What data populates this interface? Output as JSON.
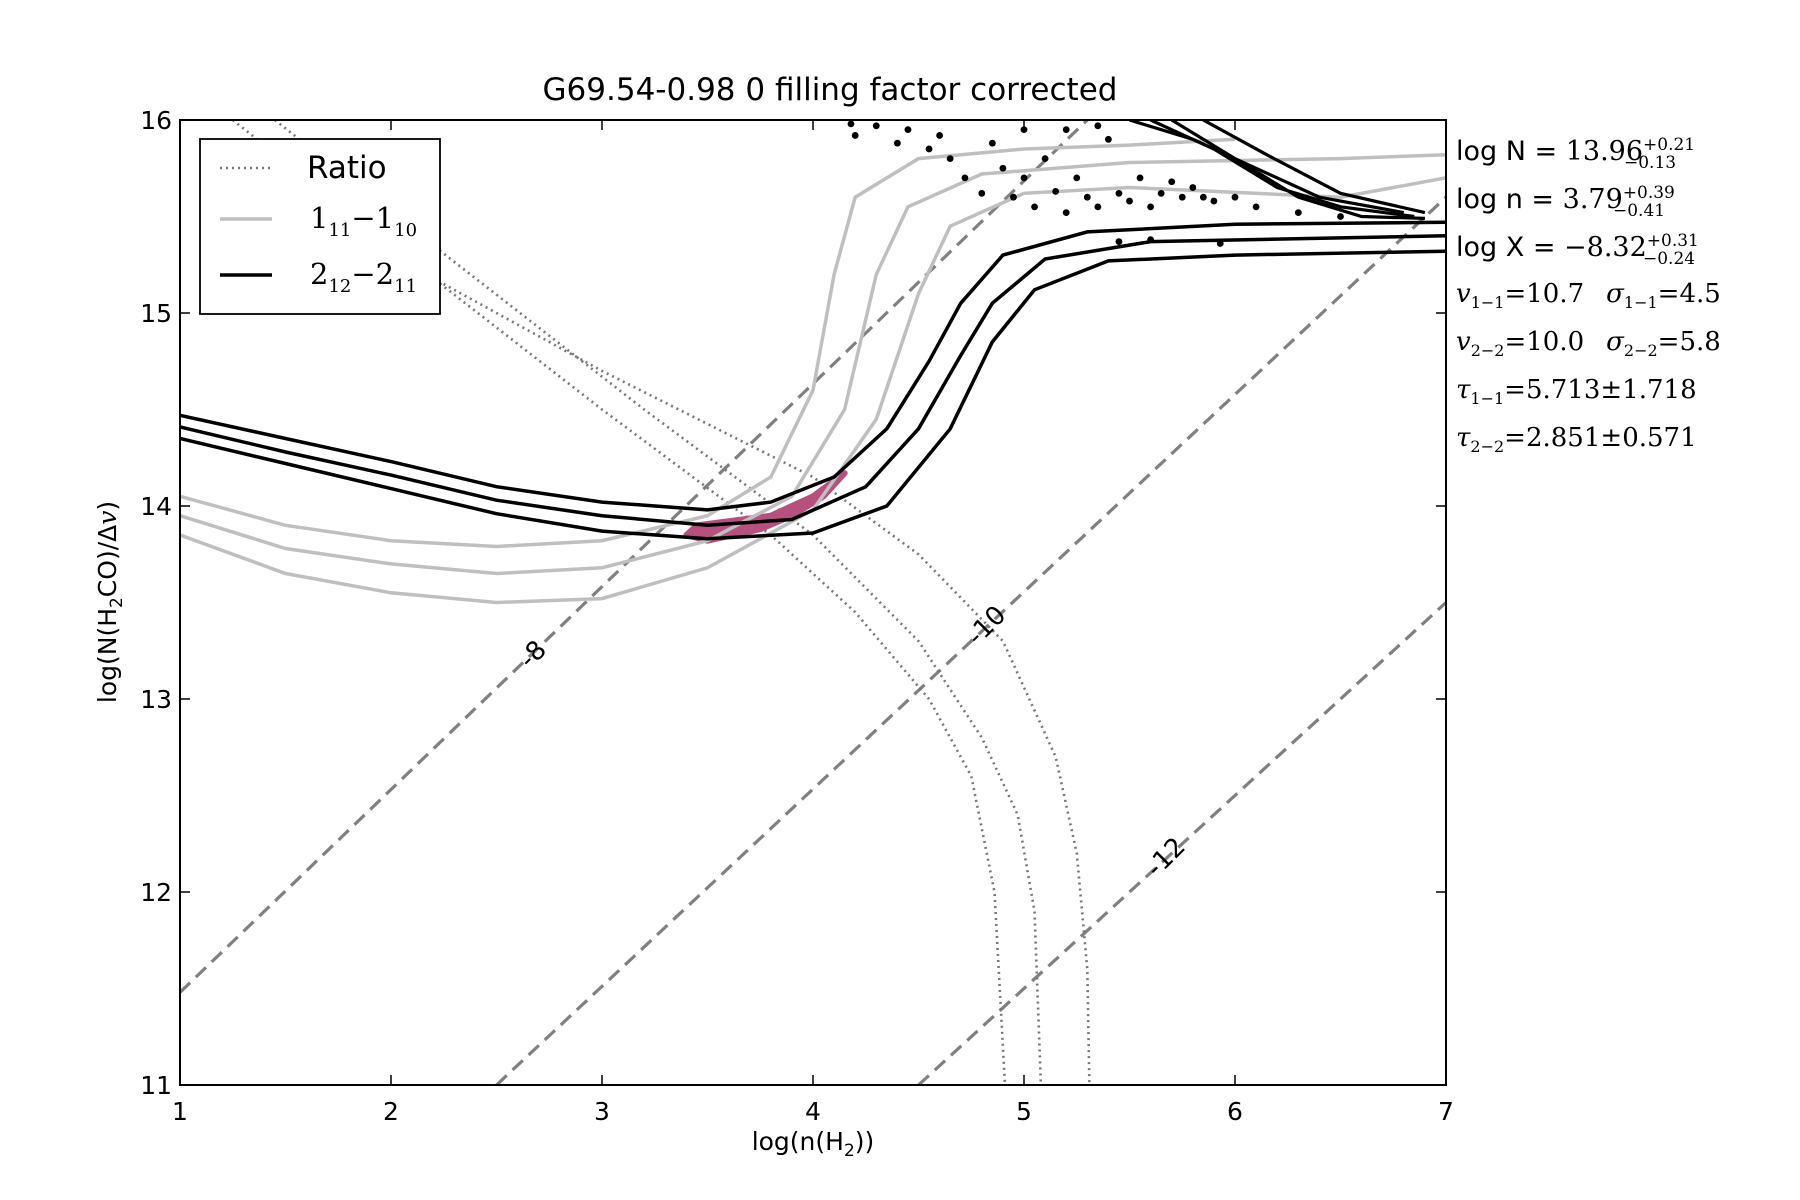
{
  "chart_data": {
    "type": "line",
    "title": "G69.54-0.98 0 filling factor corrected",
    "xlabel": "log(n(H",
    "xlabel_sub": "2",
    "xlabel_end": "))",
    "ylabel": "log(N(H",
    "ylabel_sub": "2",
    "ylabel_mid": "CO)/Δ",
    "ylabel_end": "v",
    "ylabel_close": ")",
    "xlim": [
      1,
      7
    ],
    "ylim": [
      11,
      16
    ],
    "xticks": [
      1,
      2,
      3,
      4,
      5,
      6,
      7
    ],
    "yticks": [
      11,
      12,
      13,
      14,
      15,
      16
    ],
    "grid": false,
    "legend_placement": "top-left",
    "legend": {
      "ratio": "Ratio",
      "l1_a": "1",
      "l1_a_sub": "11",
      "l1_b": "1",
      "l1_b_sub": "10",
      "l2_a": "2",
      "l2_a_sub": "12",
      "l2_b": "2",
      "l2_b_sub": "11",
      "dash": "−"
    },
    "abundance_labels": [
      {
        "text": "-8",
        "x": 2.7,
        "y": 13.2
      },
      {
        "text": "-10",
        "x": 4.85,
        "y": 13.35
      },
      {
        "text": "-12",
        "x": 5.7,
        "y": 12.15
      }
    ],
    "abundance_lines": [
      {
        "value": -8,
        "points": [
          [
            1,
            11.48
          ],
          [
            5.3,
            16.0
          ]
        ]
      },
      {
        "value": -10,
        "points": [
          [
            2.5,
            11.0
          ],
          [
            7.0,
            15.6
          ]
        ]
      },
      {
        "value": -12,
        "points": [
          [
            4.5,
            11.0
          ],
          [
            7.0,
            13.5
          ]
        ]
      }
    ],
    "series": [
      {
        "style": "ratio",
        "lines": [
          [
            [
              1.25,
              16.0
            ],
            [
              2.0,
              15.35
            ],
            [
              3.0,
              14.5
            ],
            [
              3.8,
              13.85
            ],
            [
              4.2,
              13.45
            ],
            [
              4.55,
              13.0
            ],
            [
              4.75,
              12.6
            ],
            [
              4.86,
              12.0
            ],
            [
              4.91,
              11.0
            ]
          ],
          [
            [
              1.45,
              16.0
            ],
            [
              2.2,
              15.35
            ],
            [
              3.2,
              14.5
            ],
            [
              4.0,
              13.85
            ],
            [
              4.5,
              13.3
            ],
            [
              4.8,
              12.8
            ],
            [
              4.97,
              12.4
            ],
            [
              5.05,
              11.9
            ],
            [
              5.08,
              11.0
            ]
          ],
          [
            [
              2.0,
              15.3
            ],
            [
              3.0,
              14.7
            ],
            [
              4.0,
              14.15
            ],
            [
              4.5,
              13.75
            ],
            [
              4.9,
              13.3
            ],
            [
              5.15,
              12.7
            ],
            [
              5.25,
              12.2
            ],
            [
              5.3,
              11.6
            ],
            [
              5.31,
              11.0
            ]
          ]
        ]
      },
      {
        "style": "line-11",
        "lines": [
          [
            [
              1.0,
              14.05
            ],
            [
              1.5,
              13.9
            ],
            [
              2.0,
              13.82
            ],
            [
              2.5,
              13.79
            ],
            [
              3.0,
              13.82
            ],
            [
              3.5,
              13.95
            ],
            [
              3.8,
              14.15
            ],
            [
              4.0,
              14.6
            ],
            [
              4.1,
              15.2
            ],
            [
              4.2,
              15.6
            ],
            [
              4.5,
              15.8
            ],
            [
              5.0,
              15.85
            ],
            [
              5.5,
              15.87
            ],
            [
              6.0,
              15.9
            ]
          ],
          [
            [
              1.0,
              13.95
            ],
            [
              1.5,
              13.78
            ],
            [
              2.0,
              13.7
            ],
            [
              2.5,
              13.65
            ],
            [
              3.0,
              13.68
            ],
            [
              3.5,
              13.82
            ],
            [
              3.9,
              14.05
            ],
            [
              4.15,
              14.5
            ],
            [
              4.3,
              15.2
            ],
            [
              4.45,
              15.55
            ],
            [
              4.8,
              15.72
            ],
            [
              5.5,
              15.78
            ],
            [
              6.5,
              15.8
            ],
            [
              7.0,
              15.82
            ]
          ],
          [
            [
              1.0,
              13.85
            ],
            [
              1.5,
              13.65
            ],
            [
              2.0,
              13.55
            ],
            [
              2.5,
              13.5
            ],
            [
              3.0,
              13.52
            ],
            [
              3.5,
              13.68
            ],
            [
              4.0,
              13.98
            ],
            [
              4.3,
              14.45
            ],
            [
              4.5,
              15.1
            ],
            [
              4.65,
              15.45
            ],
            [
              5.0,
              15.62
            ],
            [
              5.5,
              15.65
            ],
            [
              6.5,
              15.6
            ],
            [
              7.0,
              15.7
            ]
          ]
        ]
      },
      {
        "style": "line-22",
        "lines": [
          [
            [
              1.0,
              14.47
            ],
            [
              1.5,
              14.35
            ],
            [
              2.0,
              14.23
            ],
            [
              2.5,
              14.1
            ],
            [
              3.0,
              14.02
            ],
            [
              3.5,
              13.98
            ],
            [
              3.8,
              14.02
            ],
            [
              4.1,
              14.15
            ],
            [
              4.35,
              14.4
            ],
            [
              4.55,
              14.75
            ],
            [
              4.7,
              15.05
            ],
            [
              4.9,
              15.3
            ],
            [
              5.3,
              15.42
            ],
            [
              6.0,
              15.46
            ],
            [
              7.0,
              15.47
            ]
          ],
          [
            [
              1.0,
              14.41
            ],
            [
              1.5,
              14.28
            ],
            [
              2.0,
              14.16
            ],
            [
              2.5,
              14.03
            ],
            [
              3.0,
              13.95
            ],
            [
              3.5,
              13.9
            ],
            [
              3.9,
              13.93
            ],
            [
              4.25,
              14.1
            ],
            [
              4.5,
              14.4
            ],
            [
              4.7,
              14.78
            ],
            [
              4.85,
              15.05
            ],
            [
              5.1,
              15.28
            ],
            [
              5.6,
              15.37
            ],
            [
              7.0,
              15.4
            ]
          ],
          [
            [
              1.0,
              14.35
            ],
            [
              1.5,
              14.22
            ],
            [
              2.0,
              14.09
            ],
            [
              2.5,
              13.96
            ],
            [
              3.0,
              13.87
            ],
            [
              3.5,
              13.83
            ],
            [
              4.0,
              13.86
            ],
            [
              4.35,
              14.0
            ],
            [
              4.65,
              14.4
            ],
            [
              4.85,
              14.85
            ],
            [
              5.05,
              15.12
            ],
            [
              5.4,
              15.27
            ],
            [
              6.0,
              15.3
            ],
            [
              7.0,
              15.32
            ]
          ]
        ]
      },
      {
        "style": "line-22-upper",
        "lines": [
          [
            [
              5.5,
              16.0
            ],
            [
              5.8,
              15.9
            ],
            [
              6.1,
              15.75
            ],
            [
              6.4,
              15.6
            ],
            [
              6.8,
              15.52
            ]
          ],
          [
            [
              5.6,
              16.0
            ],
            [
              5.9,
              15.85
            ],
            [
              6.2,
              15.65
            ],
            [
              6.5,
              15.55
            ],
            [
              6.85,
              15.5
            ]
          ],
          [
            [
              5.7,
              16.0
            ],
            [
              6.0,
              15.8
            ],
            [
              6.3,
              15.6
            ],
            [
              6.6,
              15.5
            ],
            [
              6.9,
              15.49
            ]
          ],
          [
            [
              5.85,
              16.0
            ],
            [
              6.15,
              15.82
            ],
            [
              6.5,
              15.62
            ],
            [
              6.9,
              15.52
            ]
          ]
        ]
      }
    ],
    "fit_region": [
      [
        3.45,
        13.9
      ],
      [
        3.8,
        13.95
      ],
      [
        4.0,
        14.05
      ],
      [
        4.15,
        14.17
      ],
      [
        4.05,
        14.05
      ],
      [
        3.9,
        13.95
      ],
      [
        3.75,
        13.88
      ],
      [
        3.5,
        13.82
      ],
      [
        3.4,
        13.85
      ]
    ],
    "fit_region_color": "#b5507f",
    "scatter_points": [
      [
        4.18,
        15.98
      ],
      [
        4.2,
        15.92
      ],
      [
        4.3,
        15.97
      ],
      [
        4.4,
        15.88
      ],
      [
        4.45,
        15.95
      ],
      [
        4.55,
        15.85
      ],
      [
        4.6,
        15.92
      ],
      [
        4.65,
        15.8
      ],
      [
        4.72,
        15.7
      ],
      [
        4.8,
        15.62
      ],
      [
        4.85,
        15.88
      ],
      [
        4.9,
        15.75
      ],
      [
        4.95,
        15.6
      ],
      [
        5.0,
        15.7
      ],
      [
        5.05,
        15.55
      ],
      [
        5.1,
        15.8
      ],
      [
        5.15,
        15.63
      ],
      [
        5.2,
        15.52
      ],
      [
        5.25,
        15.7
      ],
      [
        5.3,
        15.6
      ],
      [
        5.35,
        15.55
      ],
      [
        5.4,
        15.9
      ],
      [
        5.45,
        15.62
      ],
      [
        5.5,
        15.58
      ],
      [
        5.55,
        15.7
      ],
      [
        5.6,
        15.55
      ],
      [
        5.65,
        15.62
      ],
      [
        5.7,
        15.68
      ],
      [
        5.75,
        15.6
      ],
      [
        5.8,
        15.65
      ],
      [
        5.85,
        15.6
      ],
      [
        5.9,
        15.58
      ],
      [
        6.0,
        15.6
      ],
      [
        6.1,
        15.55
      ],
      [
        6.3,
        15.52
      ],
      [
        6.5,
        15.5
      ],
      [
        5.45,
        15.37
      ],
      [
        5.6,
        15.38
      ],
      [
        5.93,
        15.36
      ],
      [
        5.0,
        15.95
      ],
      [
        5.2,
        15.95
      ],
      [
        5.35,
        15.97
      ]
    ],
    "annotations": [
      {
        "label": "log N = ",
        "value": "13.96",
        "sup": "+0.21",
        "sub": "−0.13"
      },
      {
        "label": "log n = ",
        "value": "3.79",
        "sup": "+0.39",
        "sub": "−0.41"
      },
      {
        "label": "log X = ",
        "value": "−8.32",
        "sup": "+0.31",
        "sub": "−0.24"
      }
    ],
    "fit_params": [
      {
        "a_sym": "v",
        "a_sub": "1−1",
        "a_val": "10.7",
        "b_sym": "σ",
        "b_sub": "1−1",
        "b_val": "4.5"
      },
      {
        "a_sym": "v",
        "a_sub": "2−2",
        "a_val": "10.0",
        "b_sym": "σ",
        "b_sub": "2−2",
        "b_val": "5.8"
      }
    ],
    "tau_params": [
      {
        "sym": "τ",
        "sub": "1−1",
        "val": "5.713",
        "err": "1.718"
      },
      {
        "sym": "τ",
        "sub": "2−2",
        "val": "2.851",
        "err": "0.571"
      }
    ],
    "colors": {
      "ratio": "#777777",
      "line11": "#bfbfbf",
      "line22": "#000000",
      "abundance": "#808080",
      "fit": "#b5507f"
    }
  }
}
